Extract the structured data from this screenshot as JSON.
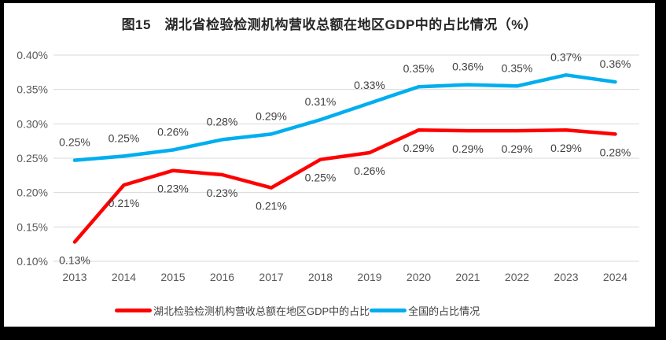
{
  "chart_data": {
    "type": "line",
    "title": "图15　湖北省检验检测机构营收总额在地区GDP中的占比情况（%）",
    "categories": [
      "2013",
      "2014",
      "2015",
      "2016",
      "2017",
      "2018",
      "2019",
      "2020",
      "2021",
      "2022",
      "2023",
      "2024"
    ],
    "series": [
      {
        "name": "湖北检验检测机构营收总额在地区GDP中的占比",
        "color": "#ff0000",
        "values": [
          0.13,
          0.21,
          0.23,
          0.23,
          0.21,
          0.25,
          0.26,
          0.29,
          0.29,
          0.29,
          0.29,
          0.28
        ],
        "labels": [
          "0.13%",
          "0.21%",
          "0.23%",
          "0.23%",
          "0.21%",
          "0.25%",
          "0.26%",
          "0.29%",
          "0.29%",
          "0.29%",
          "0.29%",
          "0.28%"
        ],
        "plot_values": [
          0.128,
          0.211,
          0.232,
          0.226,
          0.207,
          0.248,
          0.258,
          0.291,
          0.29,
          0.29,
          0.291,
          0.285
        ],
        "label_position": "below"
      },
      {
        "name": "全国的占比情况",
        "color": "#00aeef",
        "values": [
          0.25,
          0.25,
          0.26,
          0.28,
          0.29,
          0.31,
          0.33,
          0.35,
          0.36,
          0.35,
          0.37,
          0.36
        ],
        "labels": [
          "0.25%",
          "0.25%",
          "0.26%",
          "0.28%",
          "0.29%",
          "0.31%",
          "0.33%",
          "0.35%",
          "0.36%",
          "0.35%",
          "0.37%",
          "0.36%"
        ],
        "plot_values": [
          0.247,
          0.253,
          0.262,
          0.277,
          0.285,
          0.306,
          0.33,
          0.354,
          0.357,
          0.355,
          0.371,
          0.361
        ],
        "label_position": "above"
      }
    ],
    "y_axis": {
      "min": 0.1,
      "max": 0.4,
      "step": 0.05,
      "tick_values": [
        0.4,
        0.35,
        0.3,
        0.25,
        0.2,
        0.15,
        0.1
      ],
      "tick_labels": [
        "0.40%",
        "0.35%",
        "0.30%",
        "0.25%",
        "0.20%",
        "0.15%",
        "0.10%"
      ]
    },
    "grid": true,
    "legend_position": "bottom",
    "colors": {
      "grid": "#d9d9d9",
      "axis_text": "#595959",
      "data_label_text": "#404040",
      "title_text": "#262626"
    }
  }
}
